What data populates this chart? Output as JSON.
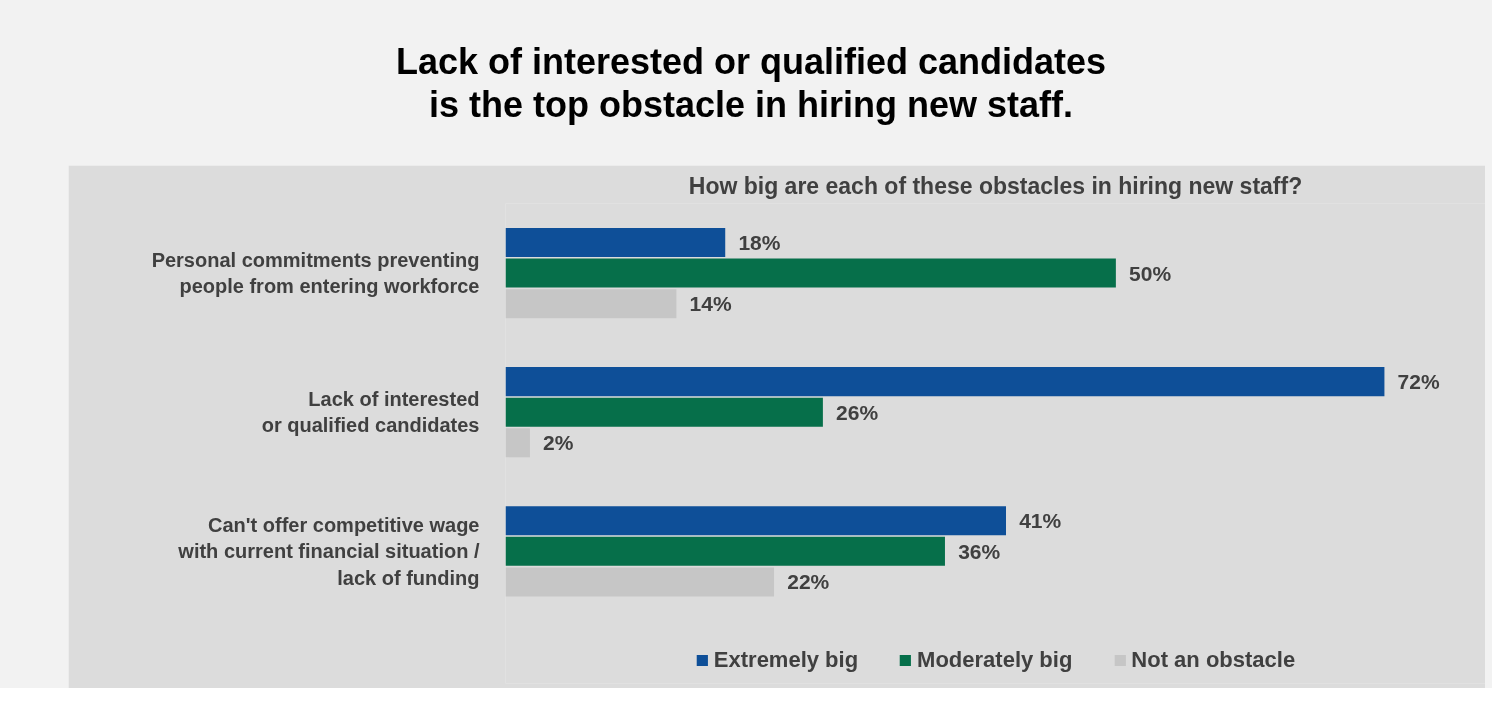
{
  "chart_data": {
    "type": "bar",
    "orientation": "horizontal",
    "title": "Lack of interested or qualified candidates\nis the top obstacle in hiring new staff.",
    "subtitle": "How big are each of these obstacles in hiring new staff?",
    "categories": [
      "Personal commitments preventing\npeople from entering workforce",
      "Lack of interested\nor qualified candidates",
      "Can't offer competitive wage\nwith current financial situation /\nlack of funding"
    ],
    "series": [
      {
        "name": "Extremely big",
        "color": "#0e4f98",
        "values": [
          18,
          72,
          41
        ],
        "value_labels": [
          "18%",
          "72%",
          "41%"
        ]
      },
      {
        "name": "Moderately big",
        "color": "#066f4a",
        "values": [
          50,
          26,
          36
        ],
        "value_labels": [
          "50%",
          "26%",
          "36%"
        ]
      },
      {
        "name": "Not an obstacle",
        "color": "#c6c6c6",
        "values": [
          14,
          2,
          22
        ],
        "value_labels": [
          "14%",
          "2%",
          "22%"
        ]
      }
    ],
    "legend": "bottom",
    "grid": false
  }
}
